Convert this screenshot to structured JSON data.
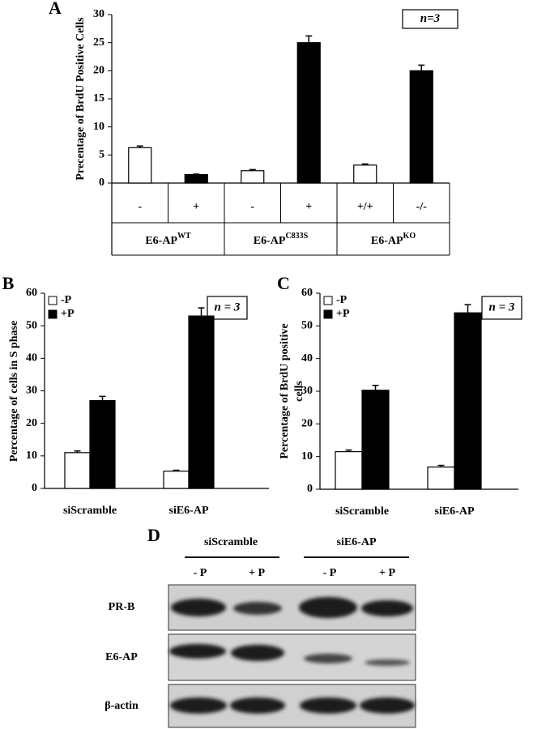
{
  "chart_data": [
    {
      "type": "bar",
      "label": "A",
      "ylabel": "Precentage of BrdU Positive Cells",
      "annotation": "n=3",
      "categories": [
        "-",
        "+",
        "-",
        "+",
        "+/+",
        "-/-"
      ],
      "values": [
        6.3,
        1.5,
        2.2,
        25,
        3.2,
        20
      ],
      "errors": [
        0.3,
        0.1,
        0.2,
        1.2,
        0.2,
        1.0
      ],
      "colors": [
        "#ffffff",
        "#000000",
        "#ffffff",
        "#000000",
        "#ffffff",
        "#000000"
      ],
      "groups": [
        {
          "text": "E6-AP",
          "sup": "WT"
        },
        {
          "text": "E6-AP",
          "sup": "C833S"
        },
        {
          "text": "E6-AP",
          "sup": "KO"
        }
      ],
      "ylim": [
        0,
        30
      ],
      "yticks": [
        0,
        5,
        10,
        15,
        20,
        25,
        30
      ]
    },
    {
      "type": "grouped_bar",
      "label": "B",
      "ylabel": "Percentage of cells in S phase",
      "annotation": "n = 3",
      "categories": [
        "siScramble",
        "siE6-AP"
      ],
      "series": [
        {
          "name": "-P",
          "color": "#ffffff",
          "values": [
            11,
            5.3
          ],
          "errors": [
            0.5,
            0.3
          ]
        },
        {
          "name": "+P",
          "color": "#000000",
          "values": [
            27,
            53
          ],
          "errors": [
            1.3,
            2.5
          ]
        }
      ],
      "ylim": [
        0,
        60
      ],
      "yticks": [
        0,
        10,
        20,
        30,
        40,
        50,
        60
      ]
    },
    {
      "type": "grouped_bar",
      "label": "C",
      "ylabel": [
        "Percentage of BrdU positive",
        "cells"
      ],
      "annotation": "n = 3",
      "categories": [
        "siScramble",
        "siE6-AP"
      ],
      "series": [
        {
          "name": "-P",
          "color": "#ffffff",
          "values": [
            11.5,
            6.8
          ],
          "errors": [
            0.5,
            0.5
          ]
        },
        {
          "name": "+P",
          "color": "#000000",
          "values": [
            30.3,
            54
          ],
          "errors": [
            1.5,
            2.5
          ]
        }
      ],
      "ylim": [
        0,
        60
      ],
      "yticks": [
        0,
        10,
        20,
        30,
        40,
        50,
        60
      ]
    }
  ],
  "blot": {
    "label": "D",
    "groups": [
      "siScramble",
      "siE6-AP"
    ],
    "lanes": [
      "- P",
      "+ P",
      "- P",
      "+ P"
    ],
    "rows": [
      "PR-B",
      "E6-AP",
      "β-actin"
    ]
  }
}
